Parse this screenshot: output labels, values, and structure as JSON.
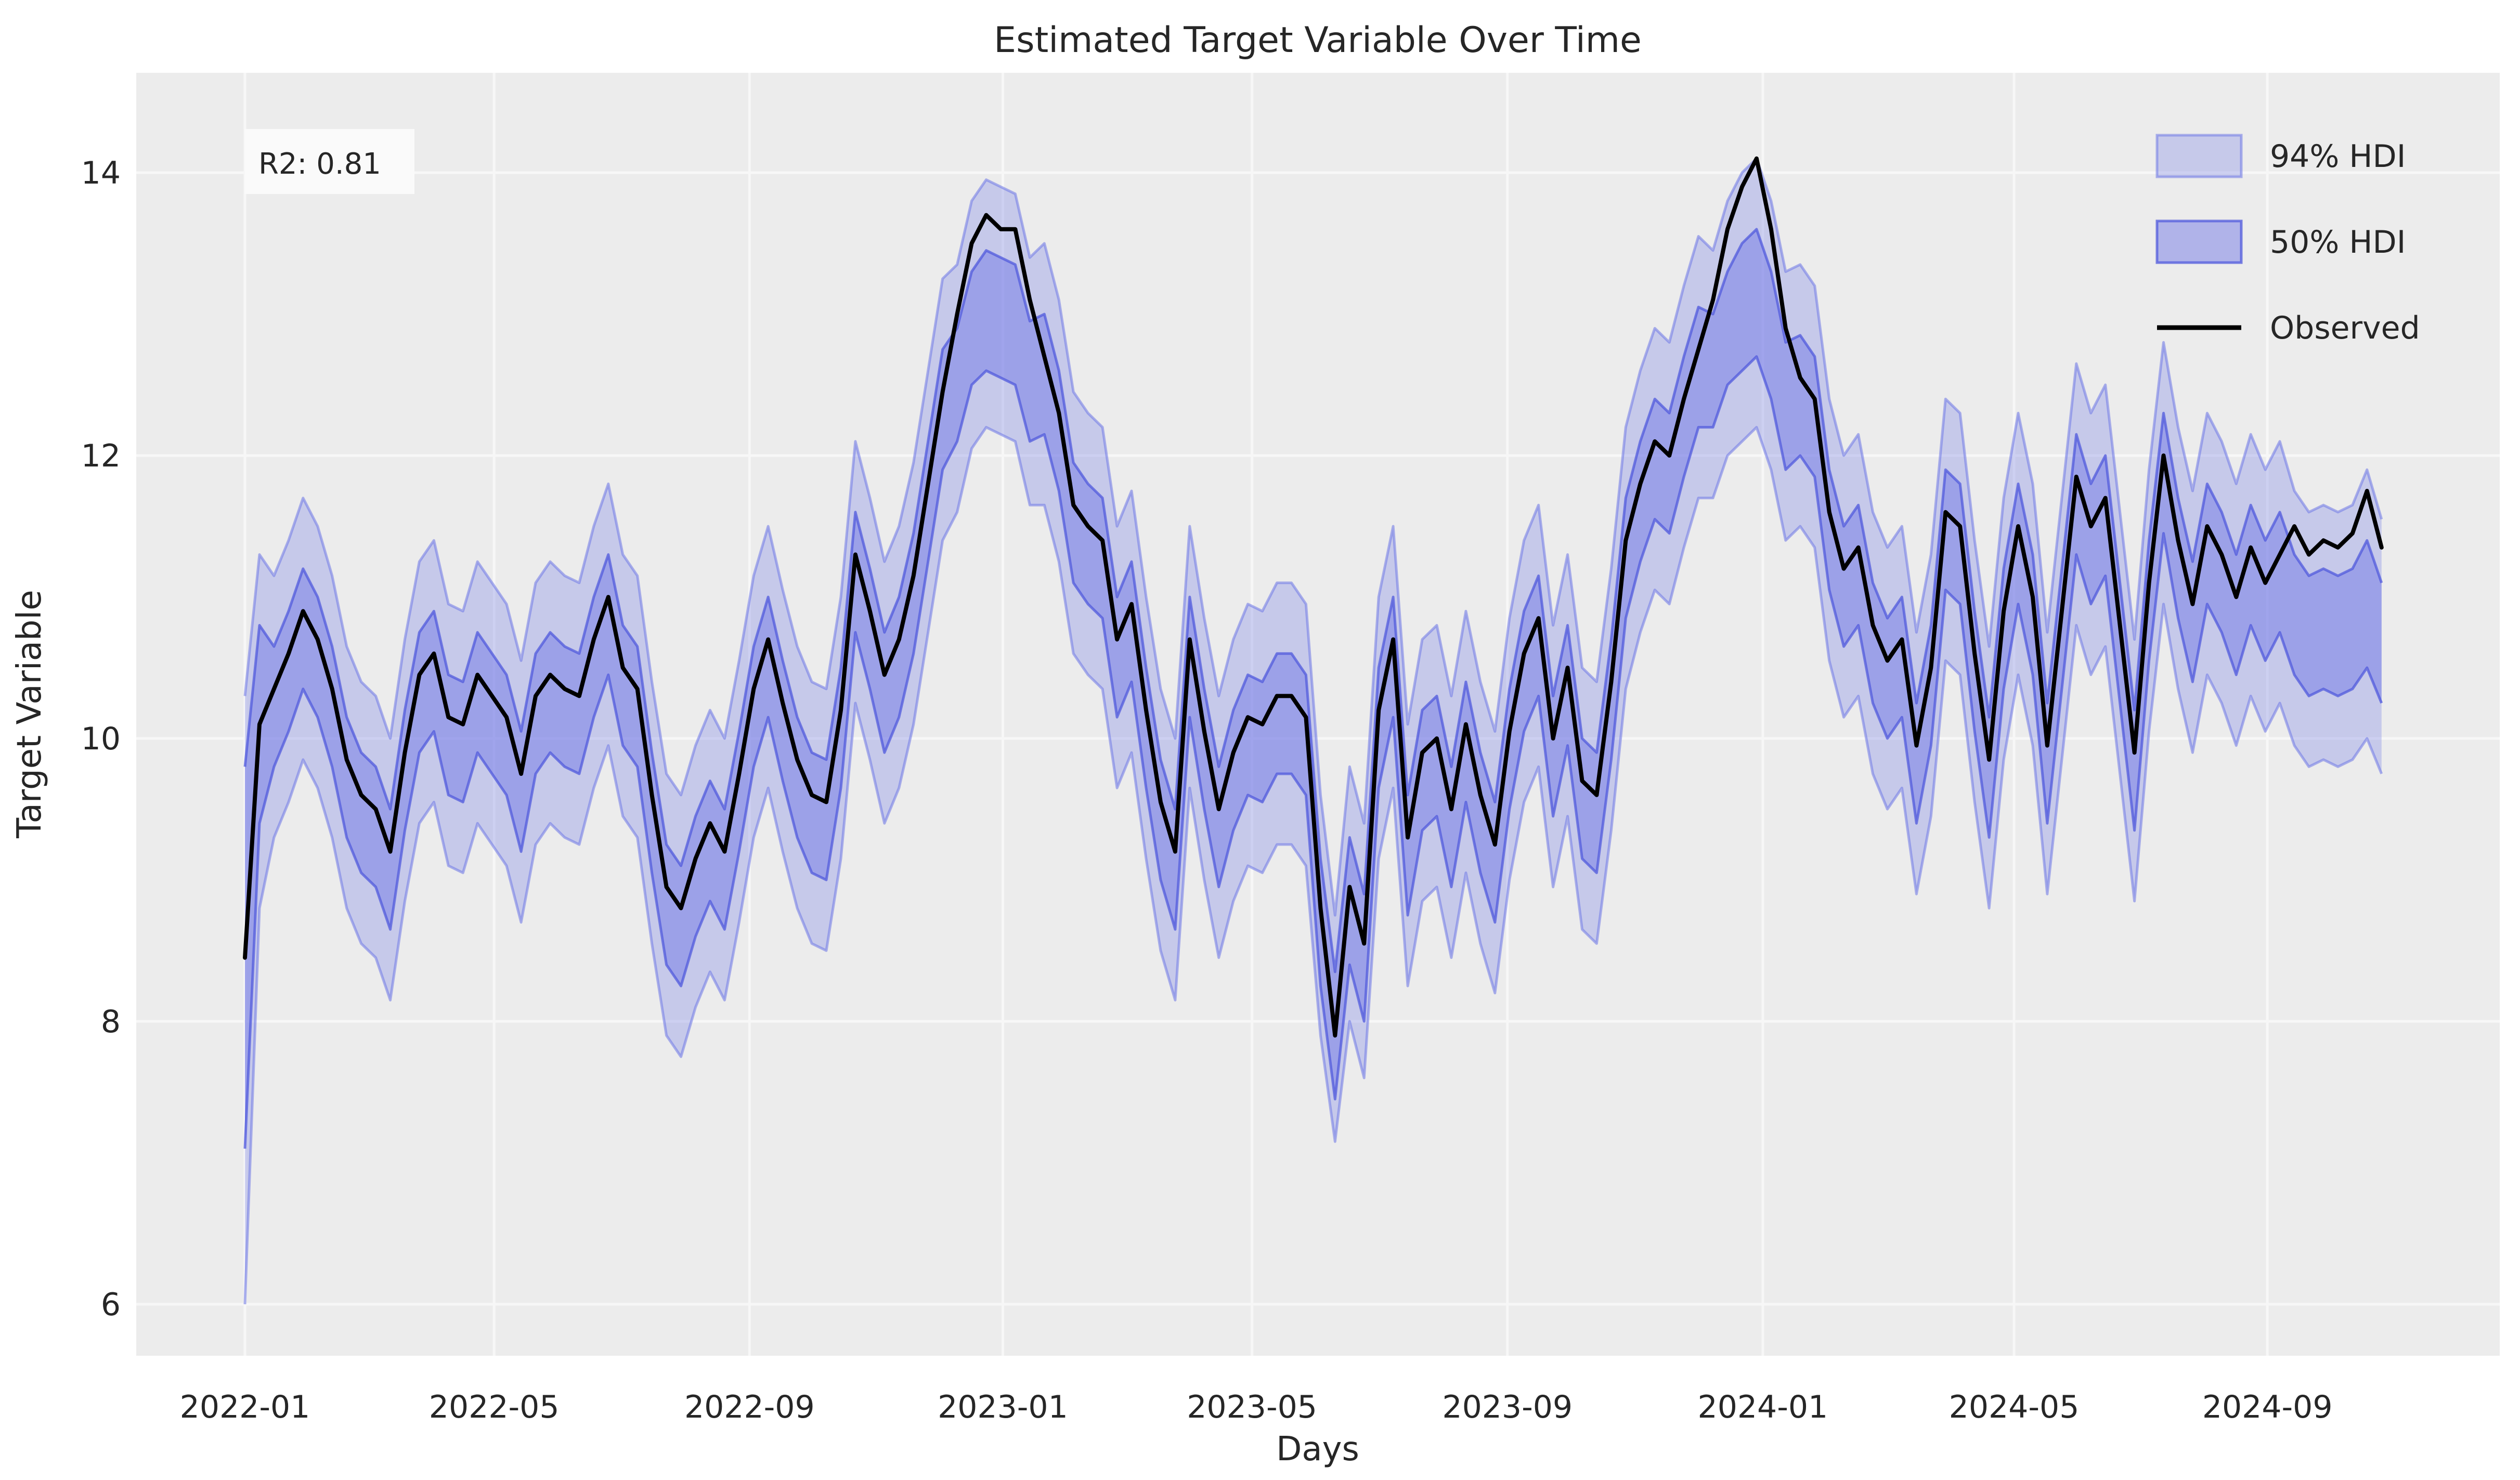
{
  "figure": {
    "title": "Estimated Target Variable Over Time",
    "xlabel": "Days",
    "ylabel": "Target Variable",
    "annotation": "R2: 0.81",
    "colors": {
      "figure_background": "#ffffff",
      "plot_background": "#ececec",
      "grid": "#f7f7f7",
      "text": "#262626",
      "observed_line": "#000000",
      "hdi_base": "#6e76e6",
      "hdi94_fill": "rgba(110,118,230,0.30)",
      "hdi94_edge": "rgba(110,118,230,0.55)",
      "hdi50_fill": "rgba(110,118,230,0.48)",
      "hdi50_edge": "rgba(80,90,220,0.75)",
      "annotation_box": "#fafafa"
    }
  },
  "legend": {
    "items": [
      {
        "label": "94% HDI",
        "type": "band"
      },
      {
        "label": "50% HDI",
        "type": "band"
      },
      {
        "label": "Observed",
        "type": "line"
      }
    ]
  },
  "chart_data": {
    "type": "line",
    "title": "Estimated Target Variable Over Time",
    "xlabel": "Days",
    "ylabel": "Target Variable",
    "annotation": "R2: 0.81",
    "legend_position": "upper right",
    "grid": true,
    "x_start_date": "2022-01-01",
    "x_ticks": [
      {
        "label": "2022-01",
        "day": 0
      },
      {
        "label": "2022-05",
        "day": 120
      },
      {
        "label": "2022-09",
        "day": 243
      },
      {
        "label": "2023-01",
        "day": 365
      },
      {
        "label": "2023-05",
        "day": 485
      },
      {
        "label": "2023-09",
        "day": 608
      },
      {
        "label": "2024-01",
        "day": 731
      },
      {
        "label": "2024-05",
        "day": 852
      },
      {
        "label": "2024-09",
        "day": 974
      }
    ],
    "y_ticks": [
      6,
      8,
      10,
      12,
      14
    ],
    "ylim": [
      5.64,
      14.71
    ],
    "xlim_days": [
      -52,
      1086
    ],
    "series_names": [
      "94% HDI",
      "50% HDI",
      "Observed"
    ],
    "columns": [
      "day",
      "hdi94_lower",
      "hdi50_lower",
      "observed",
      "hdi50_upper",
      "hdi94_upper"
    ],
    "rows": [
      [
        0,
        6.0,
        7.1,
        8.45,
        9.8,
        10.3
      ],
      [
        7,
        8.8,
        9.4,
        10.1,
        10.8,
        11.3
      ],
      [
        14,
        9.3,
        9.8,
        10.35,
        10.65,
        11.15
      ],
      [
        21,
        9.55,
        10.05,
        10.6,
        10.9,
        11.4
      ],
      [
        28,
        9.85,
        10.35,
        10.9,
        11.2,
        11.7
      ],
      [
        35,
        9.65,
        10.15,
        10.7,
        11.0,
        11.5
      ],
      [
        42,
        9.3,
        9.8,
        10.35,
        10.65,
        11.15
      ],
      [
        49,
        8.8,
        9.3,
        9.85,
        10.15,
        10.65
      ],
      [
        56,
        8.55,
        9.05,
        9.6,
        9.9,
        10.4
      ],
      [
        63,
        8.45,
        8.95,
        9.5,
        9.8,
        10.3
      ],
      [
        70,
        8.15,
        8.65,
        9.2,
        9.5,
        10.0
      ],
      [
        77,
        8.85,
        9.35,
        9.9,
        10.2,
        10.7
      ],
      [
        84,
        9.4,
        9.9,
        10.45,
        10.75,
        11.25
      ],
      [
        91,
        9.55,
        10.05,
        10.6,
        10.9,
        11.4
      ],
      [
        98,
        9.1,
        9.6,
        10.15,
        10.45,
        10.95
      ],
      [
        105,
        9.05,
        9.55,
        10.1,
        10.4,
        10.9
      ],
      [
        112,
        9.4,
        9.9,
        10.45,
        10.75,
        11.25
      ],
      [
        119,
        9.25,
        9.75,
        10.3,
        10.6,
        11.1
      ],
      [
        126,
        9.1,
        9.6,
        10.15,
        10.45,
        10.95
      ],
      [
        133,
        8.7,
        9.2,
        9.75,
        10.05,
        10.55
      ],
      [
        140,
        9.25,
        9.75,
        10.3,
        10.6,
        11.1
      ],
      [
        147,
        9.4,
        9.9,
        10.45,
        10.75,
        11.25
      ],
      [
        154,
        9.3,
        9.8,
        10.35,
        10.65,
        11.15
      ],
      [
        161,
        9.25,
        9.75,
        10.3,
        10.6,
        11.1
      ],
      [
        168,
        9.65,
        10.15,
        10.7,
        11.0,
        11.5
      ],
      [
        175,
        9.95,
        10.45,
        11.0,
        11.3,
        11.8
      ],
      [
        182,
        9.45,
        9.95,
        10.5,
        10.8,
        11.3
      ],
      [
        189,
        9.3,
        9.8,
        10.35,
        10.65,
        11.15
      ],
      [
        196,
        8.55,
        9.05,
        9.6,
        9.9,
        10.4
      ],
      [
        203,
        7.9,
        8.4,
        8.95,
        9.25,
        9.75
      ],
      [
        210,
        7.75,
        8.25,
        8.8,
        9.1,
        9.6
      ],
      [
        217,
        8.1,
        8.6,
        9.15,
        9.45,
        9.95
      ],
      [
        224,
        8.35,
        8.85,
        9.4,
        9.7,
        10.2
      ],
      [
        231,
        8.15,
        8.65,
        9.2,
        9.5,
        10.0
      ],
      [
        238,
        8.7,
        9.2,
        9.75,
        10.05,
        10.55
      ],
      [
        245,
        9.3,
        9.8,
        10.35,
        10.65,
        11.15
      ],
      [
        252,
        9.65,
        10.15,
        10.7,
        11.0,
        11.5
      ],
      [
        259,
        9.2,
        9.7,
        10.25,
        10.55,
        11.05
      ],
      [
        266,
        8.8,
        9.3,
        9.85,
        10.15,
        10.65
      ],
      [
        273,
        8.55,
        9.05,
        9.6,
        9.9,
        10.4
      ],
      [
        280,
        8.5,
        9.0,
        9.55,
        9.85,
        10.35
      ],
      [
        287,
        9.15,
        9.65,
        10.2,
        10.5,
        11.0
      ],
      [
        294,
        10.25,
        10.75,
        11.3,
        11.6,
        12.1
      ],
      [
        301,
        9.85,
        10.35,
        10.9,
        11.2,
        11.7
      ],
      [
        308,
        9.4,
        9.9,
        10.45,
        10.75,
        11.25
      ],
      [
        315,
        9.65,
        10.15,
        10.7,
        11.0,
        11.5
      ],
      [
        322,
        10.1,
        10.6,
        11.15,
        11.45,
        11.95
      ],
      [
        329,
        10.75,
        11.25,
        11.8,
        12.1,
        12.6
      ],
      [
        336,
        11.4,
        11.9,
        12.45,
        12.75,
        13.25
      ],
      [
        343,
        11.6,
        12.1,
        13.0,
        12.9,
        13.35
      ],
      [
        350,
        12.05,
        12.5,
        13.5,
        13.3,
        13.8
      ],
      [
        357,
        12.2,
        12.6,
        13.7,
        13.45,
        13.95
      ],
      [
        364,
        12.15,
        12.55,
        13.6,
        13.4,
        13.9
      ],
      [
        371,
        12.1,
        12.5,
        13.6,
        13.35,
        13.85
      ],
      [
        378,
        11.65,
        12.1,
        13.1,
        12.95,
        13.4
      ],
      [
        385,
        11.65,
        12.15,
        12.7,
        13.0,
        13.5
      ],
      [
        392,
        11.25,
        11.75,
        12.3,
        12.6,
        13.1
      ],
      [
        399,
        10.6,
        11.1,
        11.65,
        11.95,
        12.45
      ],
      [
        406,
        10.45,
        10.95,
        11.5,
        11.8,
        12.3
      ],
      [
        413,
        10.35,
        10.85,
        11.4,
        11.7,
        12.2
      ],
      [
        420,
        9.65,
        10.15,
        10.7,
        11.0,
        11.5
      ],
      [
        427,
        9.9,
        10.4,
        10.95,
        11.25,
        11.75
      ],
      [
        434,
        9.15,
        9.65,
        10.2,
        10.5,
        11.0
      ],
      [
        441,
        8.5,
        9.0,
        9.55,
        9.85,
        10.35
      ],
      [
        448,
        8.15,
        8.65,
        9.2,
        9.5,
        10.0
      ],
      [
        455,
        9.65,
        10.15,
        10.7,
        11.0,
        11.5
      ],
      [
        462,
        9.0,
        9.5,
        10.05,
        10.35,
        10.85
      ],
      [
        469,
        8.45,
        8.95,
        9.5,
        9.8,
        10.3
      ],
      [
        476,
        8.85,
        9.35,
        9.9,
        10.2,
        10.7
      ],
      [
        483,
        9.1,
        9.6,
        10.15,
        10.45,
        10.95
      ],
      [
        490,
        9.05,
        9.55,
        10.1,
        10.4,
        10.9
      ],
      [
        497,
        9.25,
        9.75,
        10.3,
        10.6,
        11.1
      ],
      [
        504,
        9.25,
        9.75,
        10.3,
        10.6,
        11.1
      ],
      [
        511,
        9.1,
        9.6,
        10.15,
        10.45,
        10.95
      ],
      [
        518,
        7.9,
        8.25,
        8.8,
        9.15,
        9.6
      ],
      [
        525,
        7.15,
        7.45,
        7.9,
        8.35,
        8.75
      ],
      [
        532,
        8.0,
        8.4,
        8.95,
        9.3,
        9.8
      ],
      [
        539,
        7.6,
        8.0,
        8.55,
        8.9,
        9.4
      ],
      [
        546,
        9.15,
        9.65,
        10.2,
        10.5,
        11.0
      ],
      [
        553,
        9.65,
        10.15,
        10.7,
        11.0,
        11.5
      ],
      [
        560,
        8.25,
        8.75,
        9.3,
        9.6,
        10.1
      ],
      [
        567,
        8.85,
        9.35,
        9.9,
        10.2,
        10.7
      ],
      [
        574,
        8.95,
        9.45,
        10.0,
        10.3,
        10.8
      ],
      [
        581,
        8.45,
        8.95,
        9.5,
        9.8,
        10.3
      ],
      [
        588,
        9.05,
        9.55,
        10.1,
        10.4,
        10.9
      ],
      [
        595,
        8.55,
        9.05,
        9.6,
        9.9,
        10.4
      ],
      [
        602,
        8.2,
        8.7,
        9.25,
        9.55,
        10.05
      ],
      [
        609,
        9.0,
        9.5,
        10.05,
        10.35,
        10.85
      ],
      [
        616,
        9.55,
        10.05,
        10.6,
        10.9,
        11.4
      ],
      [
        623,
        9.8,
        10.3,
        10.85,
        11.15,
        11.65
      ],
      [
        630,
        8.95,
        9.45,
        10.0,
        10.3,
        10.8
      ],
      [
        637,
        9.45,
        9.95,
        10.5,
        10.8,
        11.3
      ],
      [
        644,
        8.65,
        9.15,
        9.7,
        10.0,
        10.5
      ],
      [
        651,
        8.55,
        9.05,
        9.6,
        9.9,
        10.4
      ],
      [
        658,
        9.35,
        9.85,
        10.4,
        10.7,
        11.2
      ],
      [
        665,
        10.35,
        10.85,
        11.4,
        11.7,
        12.2
      ],
      [
        672,
        10.75,
        11.25,
        11.8,
        12.1,
        12.6
      ],
      [
        679,
        11.05,
        11.55,
        12.1,
        12.4,
        12.9
      ],
      [
        686,
        10.95,
        11.45,
        12.0,
        12.3,
        12.8
      ],
      [
        693,
        11.35,
        11.85,
        12.4,
        12.7,
        13.2
      ],
      [
        700,
        11.7,
        12.2,
        12.75,
        13.05,
        13.55
      ],
      [
        707,
        11.7,
        12.2,
        13.1,
        13.0,
        13.45
      ],
      [
        714,
        12.0,
        12.5,
        13.6,
        13.3,
        13.8
      ],
      [
        721,
        12.1,
        12.6,
        13.9,
        13.5,
        14.0
      ],
      [
        728,
        12.2,
        12.7,
        14.1,
        13.6,
        14.1
      ],
      [
        735,
        11.9,
        12.4,
        13.6,
        13.3,
        13.8
      ],
      [
        742,
        11.4,
        11.9,
        12.9,
        12.8,
        13.3
      ],
      [
        749,
        11.5,
        12.0,
        12.55,
        12.85,
        13.35
      ],
      [
        756,
        11.35,
        11.85,
        12.4,
        12.7,
        13.2
      ],
      [
        763,
        10.55,
        11.05,
        11.6,
        11.9,
        12.4
      ],
      [
        770,
        10.15,
        10.65,
        11.2,
        11.5,
        12.0
      ],
      [
        777,
        10.3,
        10.8,
        11.35,
        11.65,
        12.15
      ],
      [
        784,
        9.75,
        10.25,
        10.8,
        11.1,
        11.6
      ],
      [
        791,
        9.5,
        10.0,
        10.55,
        10.85,
        11.35
      ],
      [
        798,
        9.65,
        10.15,
        10.7,
        11.0,
        11.5
      ],
      [
        805,
        8.9,
        9.4,
        9.95,
        10.25,
        10.75
      ],
      [
        812,
        9.45,
        9.95,
        10.5,
        10.8,
        11.3
      ],
      [
        819,
        10.55,
        11.05,
        11.6,
        11.9,
        12.4
      ],
      [
        826,
        10.45,
        10.95,
        11.5,
        11.8,
        12.3
      ],
      [
        833,
        9.55,
        10.05,
        10.6,
        10.9,
        11.4
      ],
      [
        840,
        8.8,
        9.3,
        9.85,
        10.15,
        10.65
      ],
      [
        847,
        9.85,
        10.35,
        10.9,
        11.2,
        11.7
      ],
      [
        854,
        10.45,
        10.95,
        11.5,
        11.8,
        12.3
      ],
      [
        861,
        9.95,
        10.45,
        11.0,
        11.3,
        11.8
      ],
      [
        868,
        8.9,
        9.4,
        9.95,
        10.25,
        10.75
      ],
      [
        875,
        9.85,
        10.35,
        10.9,
        11.2,
        11.7
      ],
      [
        882,
        10.8,
        11.3,
        11.85,
        12.15,
        12.65
      ],
      [
        889,
        10.45,
        10.95,
        11.5,
        11.8,
        12.3
      ],
      [
        896,
        10.65,
        11.15,
        11.7,
        12.0,
        12.5
      ],
      [
        903,
        9.75,
        10.25,
        10.8,
        11.1,
        11.6
      ],
      [
        910,
        8.85,
        9.35,
        9.9,
        10.2,
        10.7
      ],
      [
        917,
        10.05,
        10.55,
        11.1,
        11.4,
        11.9
      ],
      [
        924,
        10.95,
        11.45,
        12.0,
        12.3,
        12.8
      ],
      [
        931,
        10.35,
        10.85,
        11.4,
        11.7,
        12.2
      ],
      [
        938,
        9.9,
        10.4,
        10.95,
        11.25,
        11.75
      ],
      [
        945,
        10.45,
        10.95,
        11.5,
        11.8,
        12.3
      ],
      [
        952,
        10.25,
        10.75,
        11.3,
        11.6,
        12.1
      ],
      [
        959,
        9.95,
        10.45,
        11.0,
        11.3,
        11.8
      ],
      [
        966,
        10.3,
        10.8,
        11.35,
        11.65,
        12.15
      ],
      [
        973,
        10.05,
        10.55,
        11.1,
        11.4,
        11.9
      ],
      [
        980,
        10.25,
        10.75,
        11.3,
        11.6,
        12.1
      ],
      [
        987,
        9.95,
        10.45,
        11.5,
        11.3,
        11.75
      ],
      [
        994,
        9.8,
        10.3,
        11.3,
        11.15,
        11.6
      ],
      [
        1001,
        9.85,
        10.35,
        11.4,
        11.2,
        11.65
      ],
      [
        1008,
        9.8,
        10.3,
        11.35,
        11.15,
        11.6
      ],
      [
        1015,
        9.85,
        10.35,
        11.45,
        11.2,
        11.65
      ],
      [
        1022,
        10.0,
        10.5,
        11.75,
        11.4,
        11.9
      ],
      [
        1029,
        9.75,
        10.25,
        11.35,
        11.1,
        11.55
      ]
    ]
  }
}
